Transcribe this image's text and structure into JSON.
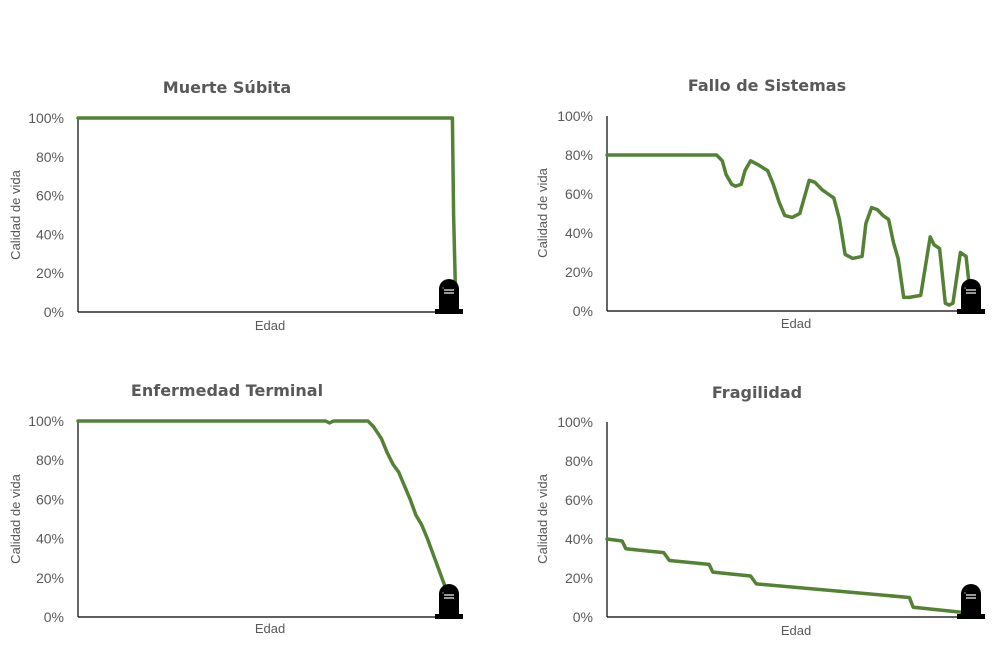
{
  "chart_data": [
    {
      "type": "line",
      "title": "Muerte Súbita",
      "xlabel": "Edad",
      "ylabel": "Calidad de vida",
      "ylim": [
        0,
        100
      ],
      "yticks": [
        "0%",
        "20%",
        "40%",
        "60%",
        "80%",
        "100%"
      ],
      "xlim": [
        0,
        100
      ],
      "grid": false,
      "icon": "tombstone-icon",
      "series": [
        {
          "color": "#548235",
          "x": [
            0,
            97.5,
            97.8,
            98.3
          ],
          "y": [
            100,
            100,
            50,
            10
          ]
        }
      ]
    },
    {
      "type": "line",
      "title": "Fallo de Sistemas",
      "xlabel": "Edad",
      "ylabel": "Calidad de vida",
      "ylim": [
        0,
        100
      ],
      "yticks": [
        "0%",
        "20%",
        "40%",
        "60%",
        "80%",
        "100%"
      ],
      "xlim": [
        0,
        100
      ],
      "grid": false,
      "icon": "tombstone-icon",
      "series": [
        {
          "color": "#548235",
          "x": [
            0,
            29,
            30.5,
            31.5,
            33,
            34,
            35.5,
            36.5,
            38,
            40,
            42.5,
            44,
            45.5,
            47,
            49,
            51,
            53.5,
            55,
            57,
            58.5,
            60,
            61.5,
            63,
            65,
            67.5,
            68.5,
            70,
            71.5,
            73,
            74.5,
            75.8,
            77,
            78.5,
            80,
            83,
            84.5,
            85.5,
            86.5,
            88,
            89.5,
            90.5,
            91.5,
            93.5,
            95,
            96,
            97.5
          ],
          "y": [
            80,
            80,
            77,
            70,
            65,
            64,
            65,
            72,
            77,
            75,
            72,
            65,
            56,
            49,
            48,
            50,
            67,
            66,
            62,
            60,
            58,
            47,
            29,
            27,
            28,
            45,
            53,
            52,
            49,
            47,
            35,
            27,
            7,
            7,
            8,
            26,
            38,
            34,
            32,
            4,
            3,
            4,
            30,
            28,
            10,
            5
          ]
        }
      ]
    },
    {
      "type": "line",
      "title": "Enfermedad Terminal",
      "xlabel": "Edad",
      "ylabel": "Calidad de vida",
      "ylim": [
        0,
        100
      ],
      "yticks": [
        "0%",
        "20%",
        "40%",
        "60%",
        "80%",
        "100%"
      ],
      "xlim": [
        0,
        100
      ],
      "grid": false,
      "icon": "tombstone-icon",
      "series": [
        {
          "color": "#548235",
          "x": [
            0,
            64.5,
            65.5,
            66.5,
            75.5,
            77,
            79,
            80.5,
            82,
            83.5,
            85,
            86.5,
            88,
            89.5,
            91,
            92.5,
            94,
            95.5,
            97,
            97.5
          ],
          "y": [
            100,
            100,
            99,
            100,
            100,
            97,
            91,
            84,
            78,
            74,
            67,
            60,
            52,
            47,
            40,
            32,
            24,
            16,
            10,
            8
          ]
        }
      ]
    },
    {
      "type": "line",
      "title": "Fragilidad",
      "xlabel": "Edad",
      "ylabel": "Calidad de vida",
      "ylim": [
        0,
        100
      ],
      "yticks": [
        "0%",
        "20%",
        "40%",
        "60%",
        "80%",
        "100%"
      ],
      "xlim": [
        0,
        100
      ],
      "grid": false,
      "icon": "tombstone-icon",
      "series": [
        {
          "color": "#548235",
          "x": [
            0,
            4,
            5,
            15,
            16.5,
            27,
            28,
            38,
            39.5,
            80,
            81,
            96,
            97.5
          ],
          "y": [
            40,
            39,
            35,
            33,
            29,
            27,
            23,
            21,
            17,
            10,
            5,
            2,
            1
          ]
        }
      ]
    }
  ]
}
